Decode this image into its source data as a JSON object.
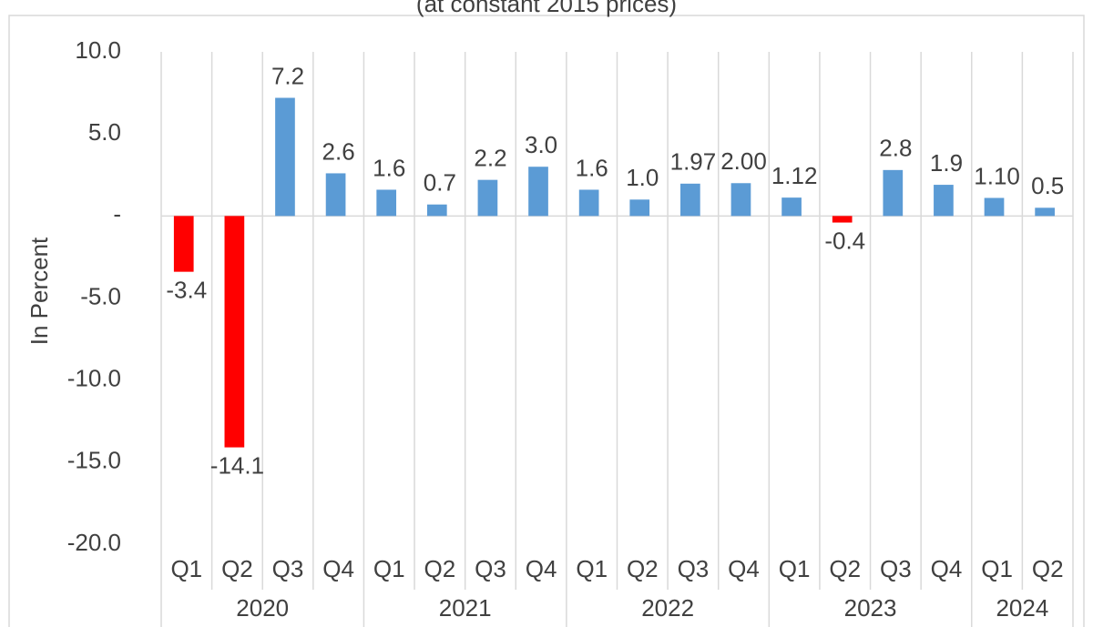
{
  "chart_data": {
    "type": "bar",
    "subtitle": "(at constant 2015 prices)",
    "ylabel": "In Percent",
    "categories": [
      "Q1",
      "Q2",
      "Q3",
      "Q4",
      "Q1",
      "Q2",
      "Q3",
      "Q4",
      "Q1",
      "Q2",
      "Q3",
      "Q4",
      "Q1",
      "Q2",
      "Q3",
      "Q4",
      "Q1",
      "Q2"
    ],
    "groups": [
      {
        "label": "2020",
        "size": 4
      },
      {
        "label": "2021",
        "size": 4
      },
      {
        "label": "2022",
        "size": 4
      },
      {
        "label": "2023",
        "size": 4
      },
      {
        "label": "2024",
        "size": 2
      }
    ],
    "values": [
      -3.4,
      -14.1,
      7.2,
      2.6,
      1.6,
      0.7,
      2.2,
      3.0,
      1.6,
      1.0,
      1.97,
      2.0,
      1.12,
      -0.4,
      2.8,
      1.9,
      1.1,
      0.5
    ],
    "value_labels": [
      "-3.4",
      "-14.1",
      "7.2",
      "2.6",
      "1.6",
      "0.7",
      "2.2",
      "3.0",
      "1.6",
      "1.0",
      "1.97",
      "2.00",
      "1.12",
      "-0.4",
      "2.8",
      "1.9",
      "1.10",
      "0.5"
    ],
    "color": "#5b9bd5",
    "negative_color": "#ff0000",
    "ylim": [
      -20,
      10
    ],
    "yticks": [
      {
        "value": -20,
        "label": "-20.0"
      },
      {
        "value": -15,
        "label": "-15.0"
      },
      {
        "value": -10,
        "label": "-10.0"
      },
      {
        "value": -5,
        "label": "-5.0"
      },
      {
        "value": 0,
        "label": "-"
      },
      {
        "value": 5,
        "label": "5.0"
      },
      {
        "value": 10,
        "label": "10.0"
      }
    ]
  }
}
